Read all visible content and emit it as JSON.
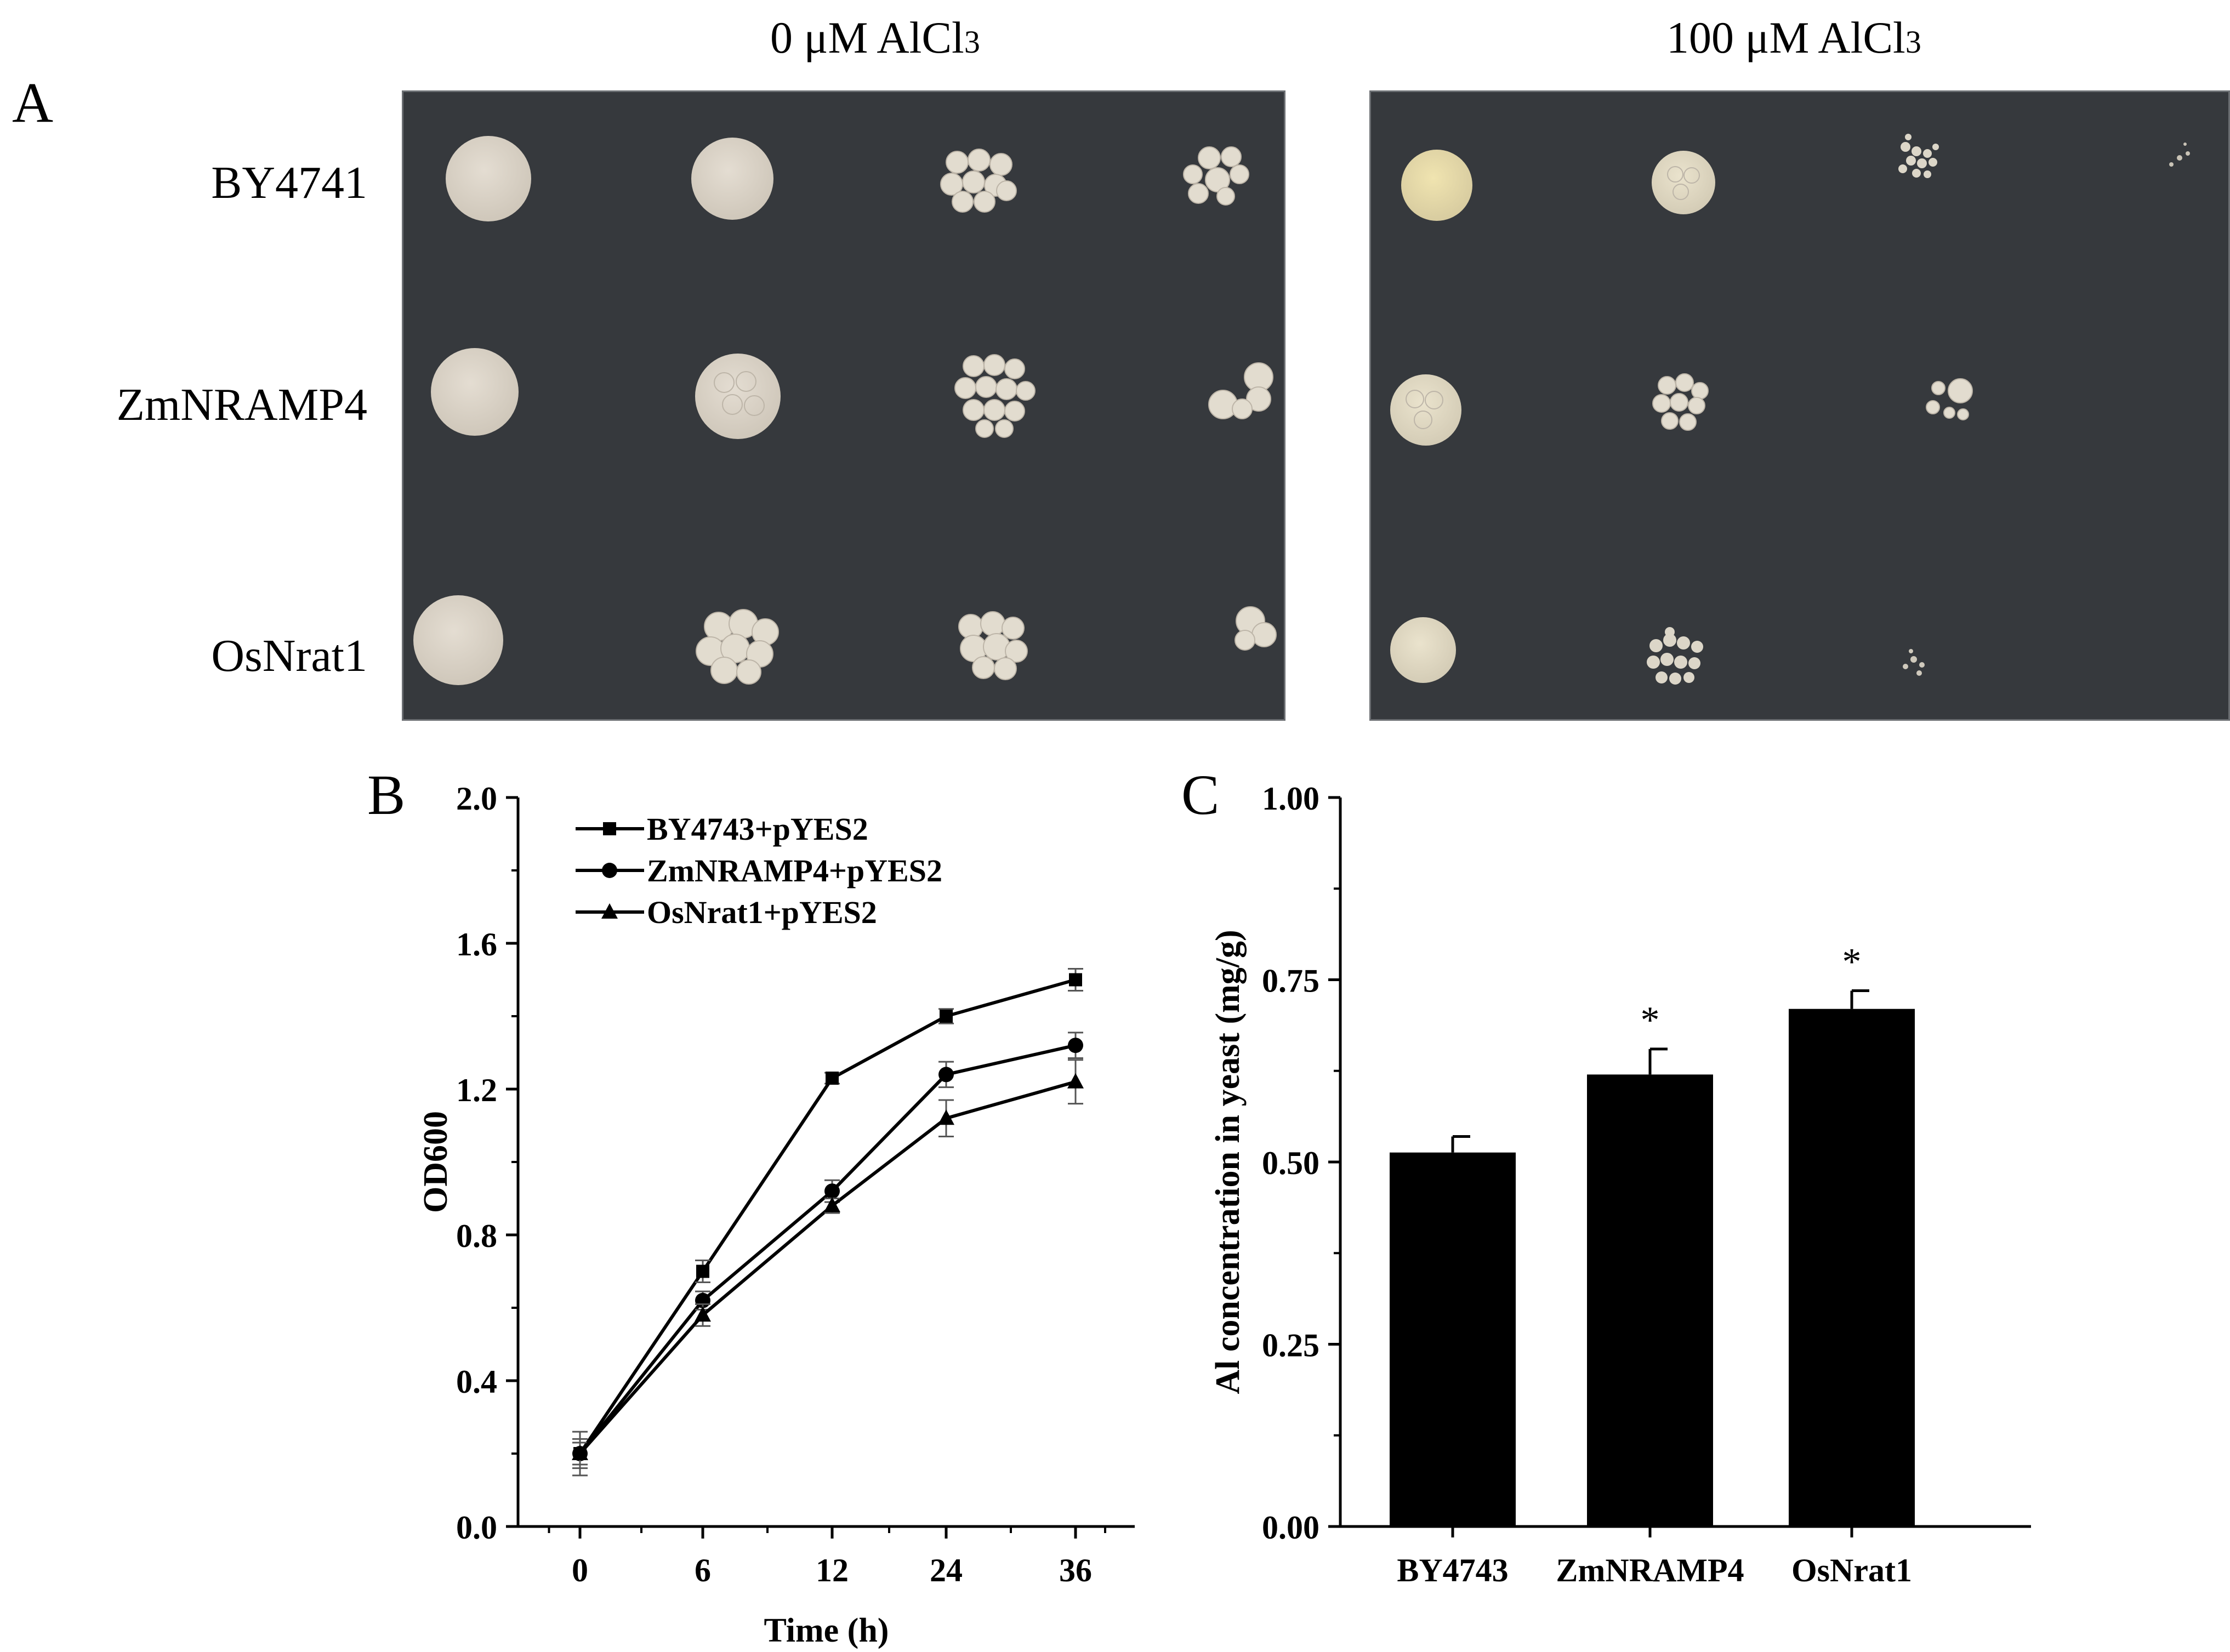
{
  "panel_a": {
    "letter": "A",
    "conditions": [
      {
        "title_main": "0 μM AlCl",
        "title_sub": "3"
      },
      {
        "title_main": "100 μM AlCl",
        "title_sub": "3"
      }
    ],
    "strains": [
      "BY4741",
      "ZmNRAMP4",
      "OsNrat1"
    ],
    "colors": {
      "plate": "#36393d",
      "colony_0": "#d9d2c6",
      "colony_100": "#e0dbc3",
      "colony_100_first": "#e8ddb0"
    }
  },
  "chart_data": [
    {
      "type": "line",
      "panel_letter": "B",
      "x": [
        0,
        6,
        12,
        24,
        36
      ],
      "x_ticks": [
        "0",
        "6",
        "12",
        "24",
        "36"
      ],
      "xlabel": "Time (h)",
      "ylabel": "OD600",
      "ylim": [
        0.0,
        2.0
      ],
      "y_ticks": [
        "0.0",
        "0.4",
        "0.8",
        "1.2",
        "1.6",
        "2.0"
      ],
      "legend_position": "top-left",
      "series": [
        {
          "name": "BY4743+pYES2",
          "marker": "square",
          "values": [
            0.2,
            0.7,
            1.23,
            1.4,
            1.5
          ],
          "errors": [
            0.03,
            0.03,
            0.015,
            0.02,
            0.03
          ]
        },
        {
          "name": "ZmNRAMP4+pYES2",
          "marker": "circle",
          "values": [
            0.2,
            0.62,
            0.92,
            1.24,
            1.32
          ],
          "errors": [
            0.04,
            0.025,
            0.03,
            0.035,
            0.035
          ]
        },
        {
          "name": "OsNrat1+pYES2",
          "marker": "triangle",
          "values": [
            0.2,
            0.58,
            0.88,
            1.12,
            1.22
          ],
          "errors": [
            0.06,
            0.03,
            0.02,
            0.05,
            0.06
          ]
        }
      ]
    },
    {
      "type": "bar",
      "panel_letter": "C",
      "categories": [
        "BY4743",
        "ZmNRAMP4",
        "OsNrat1"
      ],
      "values": [
        0.513,
        0.62,
        0.71
      ],
      "errors": [
        0.022,
        0.035,
        0.025
      ],
      "significance": [
        "",
        "*",
        "*"
      ],
      "xlabel": "",
      "ylabel": "Al concentration in yeast (mg/g)",
      "ylim": [
        0.0,
        1.0
      ],
      "y_ticks": [
        "0.00",
        "0.25",
        "0.50",
        "0.75",
        "1.00"
      ],
      "bar_color": "#000000"
    }
  ]
}
